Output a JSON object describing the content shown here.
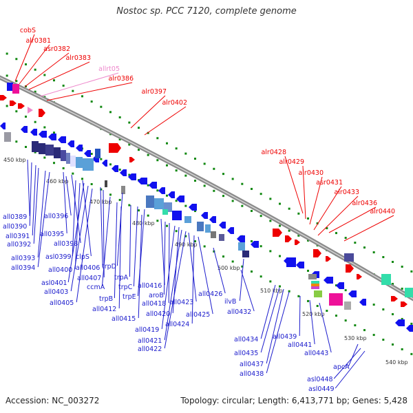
{
  "title": "Nostoc sp. PCC 7120, complete genome",
  "footer": {
    "accession": "Accession: NC_003272",
    "summary": "Topology: circular; Length: 6,413,771 bp; Genes: 5,428"
  },
  "colors": {
    "backbone": "#8c8c8c",
    "forward_label": "#ee0000",
    "reverse_label": "#1a1acc",
    "rna_label": "#ee88cc",
    "forward_gene": "#ee0000",
    "reverse_gene": "#1111ee",
    "tick": "#118811",
    "cog_navy": "#2a2a77",
    "cog_lightblue": "#5aa0d8",
    "cog_teal": "#33ddaa",
    "cog_magenta": "#ee1199",
    "cog_gray": "#9a9aa4"
  },
  "kbp_labels": [
    "450 kbp",
    "460 kbp",
    "470 kbp",
    "480 kbp",
    "490 kbp",
    "500 kbp",
    "510 kbp",
    "520 kbp",
    "530 kbp",
    "540 kbp"
  ],
  "forward_labels": [
    "cobS",
    "alr0381",
    "asr0382",
    "alr0383",
    "allrt05",
    "alr0386",
    "alr0397",
    "alr0402",
    "alr0428",
    "alr0429",
    "alr0430",
    "asr0431",
    "alr0433",
    "alr0436",
    "alr0440"
  ],
  "reverse_labels": [
    "all0389",
    "all0390",
    "all0391",
    "all0392",
    "all0393",
    "all0394",
    "all0395",
    "all0396",
    "all0398",
    "asl0399",
    "clpS",
    "all0400",
    "all0406",
    "all0407",
    "trpD",
    "asl0401",
    "all0403",
    "all0405",
    "ccmA",
    "trpA",
    "trpC",
    "trpE",
    "trpB",
    "all0412",
    "all0415",
    "all0416",
    "aroB",
    "all0418",
    "all0419",
    "all0420",
    "all0421",
    "all0422",
    "all0423",
    "all0424",
    "all0425",
    "all0426",
    "ilvB",
    "all0432",
    "all0434",
    "all0435",
    "all0437",
    "all0438",
    "all0439",
    "all0441",
    "all0443",
    "apcA",
    "asl0448",
    "asl0449"
  ]
}
